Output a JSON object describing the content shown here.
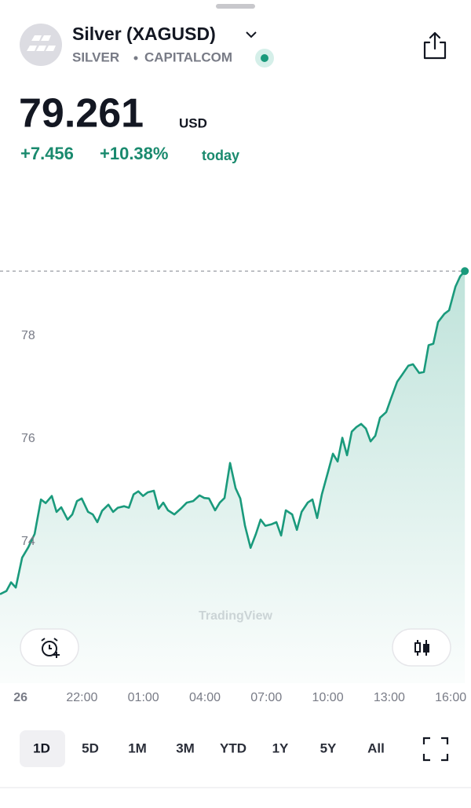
{
  "header": {
    "symbol": "Silver (XAGUSD)",
    "market": "SILVER",
    "exchange": "CAPITALCOM",
    "price": "79.261",
    "currency": "USD",
    "change": "+7.456",
    "change_percent": "+10.38%",
    "period": "today"
  },
  "chart_data": {
    "type": "line",
    "color": "#1a9a7c",
    "watermark": "TradingView",
    "xlim": [
      18.0,
      40.99
    ],
    "xticks": [
      {
        "value": 19,
        "label": "26"
      },
      {
        "value": 22,
        "label": "22:00"
      },
      {
        "value": 25,
        "label": "01:00"
      },
      {
        "value": 28,
        "label": "04:00"
      },
      {
        "value": 31,
        "label": "07:00"
      },
      {
        "value": 34,
        "label": "10:00"
      },
      {
        "value": 37,
        "label": "13:00"
      },
      {
        "value": 40,
        "label": "16:00"
      }
    ],
    "ylim": [
      71.25,
      79.57
    ],
    "yticks": [
      74,
      76,
      78
    ],
    "grid": false,
    "x": [
      18.0,
      18.31,
      18.54,
      18.77,
      19.08,
      19.38,
      19.69,
      20.0,
      20.23,
      20.53,
      20.76,
      20.99,
      21.3,
      21.53,
      21.76,
      21.99,
      22.3,
      22.53,
      22.75,
      22.98,
      23.29,
      23.52,
      23.75,
      24.06,
      24.29,
      24.52,
      24.75,
      24.98,
      25.21,
      25.51,
      25.74,
      25.97,
      26.2,
      26.51,
      26.82,
      27.12,
      27.43,
      27.74,
      27.97,
      28.2,
      28.5,
      28.73,
      28.96,
      29.23,
      29.5,
      29.73,
      29.96,
      30.23,
      30.49,
      30.72,
      30.95,
      31.26,
      31.49,
      31.72,
      31.95,
      32.26,
      32.49,
      32.72,
      33.02,
      33.25,
      33.48,
      33.71,
      34.02,
      34.25,
      34.48,
      34.71,
      34.94,
      35.17,
      35.4,
      35.63,
      35.86,
      36.09,
      36.32,
      36.55,
      36.85,
      37.08,
      37.39,
      37.62,
      37.93,
      38.16,
      38.46,
      38.69,
      38.92,
      39.15,
      39.38,
      39.69,
      39.92,
      40.23,
      40.46,
      40.69
    ],
    "values": [
      72.98,
      73.04,
      73.21,
      73.11,
      73.69,
      73.89,
      74.15,
      74.82,
      74.75,
      74.89,
      74.58,
      74.67,
      74.43,
      74.53,
      74.79,
      74.84,
      74.58,
      74.53,
      74.38,
      74.6,
      74.72,
      74.58,
      74.66,
      74.69,
      74.66,
      74.92,
      74.98,
      74.89,
      74.96,
      74.99,
      74.64,
      74.76,
      74.61,
      74.53,
      74.64,
      74.76,
      74.79,
      74.9,
      74.85,
      74.84,
      74.61,
      74.76,
      74.85,
      75.53,
      75.04,
      74.84,
      74.31,
      73.88,
      74.15,
      74.43,
      74.31,
      74.34,
      74.38,
      74.12,
      74.61,
      74.53,
      74.23,
      74.58,
      74.76,
      74.82,
      74.46,
      74.92,
      75.37,
      75.71,
      75.56,
      76.02,
      75.68,
      76.14,
      76.23,
      76.29,
      76.2,
      75.95,
      76.06,
      76.41,
      76.52,
      76.78,
      77.11,
      77.24,
      77.42,
      77.45,
      77.28,
      77.3,
      77.82,
      77.85,
      78.27,
      78.43,
      78.5,
      78.96,
      79.16,
      79.261
    ]
  },
  "timeframes": {
    "options": [
      "1D",
      "5D",
      "1M",
      "3M",
      "YTD",
      "1Y",
      "5Y",
      "All"
    ],
    "selected": 0
  }
}
